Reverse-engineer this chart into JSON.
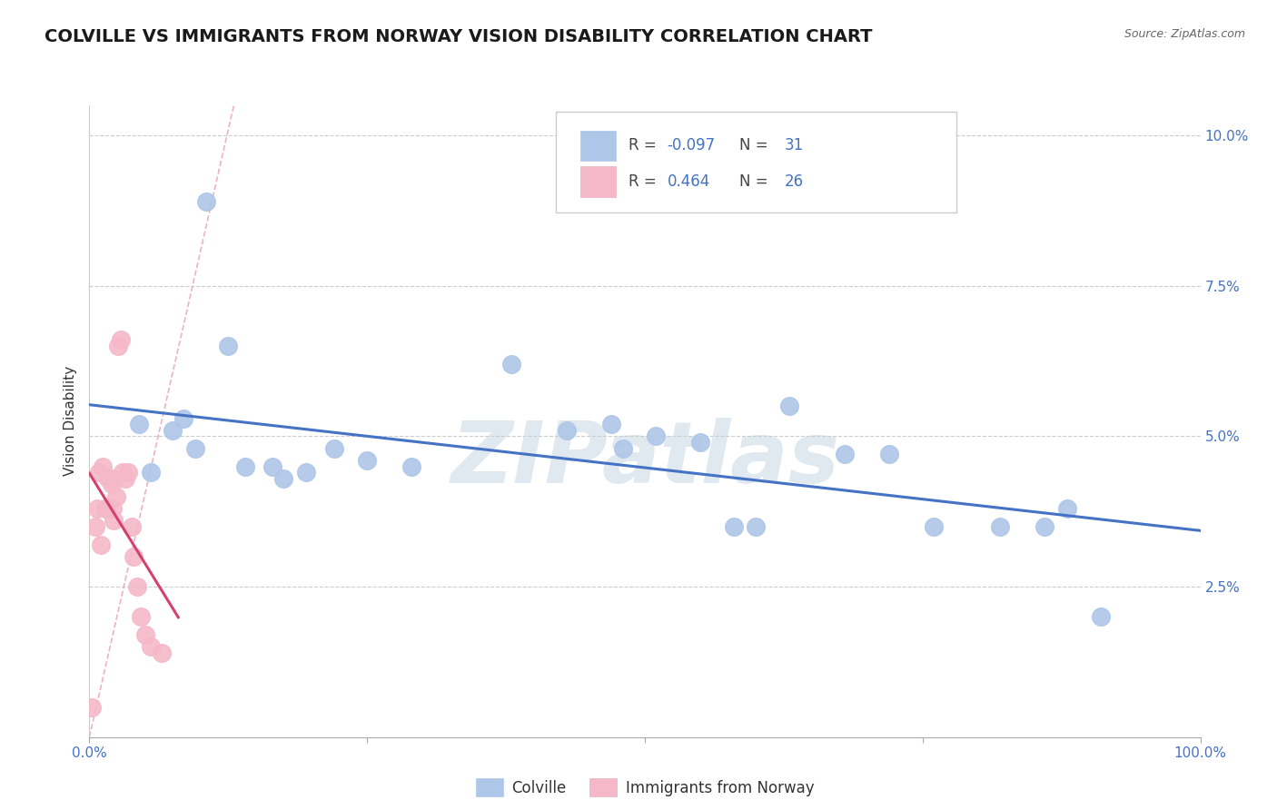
{
  "title": "COLVILLE VS IMMIGRANTS FROM NORWAY VISION DISABILITY CORRELATION CHART",
  "source": "Source: ZipAtlas.com",
  "ylabel": "Vision Disability",
  "legend_label1": "Colville",
  "legend_label2": "Immigrants from Norway",
  "r1": "-0.097",
  "n1": "31",
  "r2": "0.464",
  "n2": "26",
  "colville_color": "#aec6e8",
  "norway_color": "#f5b8c8",
  "colville_line_color": "#4472C4",
  "norway_line_color": "#d44070",
  "ref_line_color": "#e8a0b4",
  "background_color": "#ffffff",
  "grid_color": "#cccccc",
  "xlim": [
    0.0,
    100.0
  ],
  "ylim": [
    0.0,
    10.5
  ],
  "yticks": [
    2.5,
    5.0,
    7.5,
    10.0
  ],
  "colville_x": [
    2.0,
    4.5,
    5.5,
    7.5,
    8.5,
    9.5,
    10.5,
    12.5,
    14.0,
    16.5,
    17.5,
    19.5,
    22.0,
    25.0,
    29.0,
    38.0,
    43.0,
    47.0,
    48.0,
    51.0,
    55.0,
    58.0,
    60.0,
    63.0,
    68.0,
    72.0,
    76.0,
    82.0,
    86.0,
    88.0,
    91.0
  ],
  "colville_y": [
    4.3,
    5.2,
    4.4,
    5.1,
    5.3,
    4.8,
    8.9,
    6.5,
    4.5,
    4.5,
    4.3,
    4.4,
    4.8,
    4.6,
    4.5,
    6.2,
    5.1,
    5.2,
    4.8,
    5.0,
    4.9,
    3.5,
    3.5,
    5.5,
    4.7,
    4.7,
    3.5,
    3.5,
    3.5,
    3.8,
    2.0
  ],
  "norway_x": [
    0.2,
    0.5,
    0.7,
    0.9,
    1.0,
    1.2,
    1.4,
    1.5,
    1.7,
    1.9,
    2.0,
    2.1,
    2.2,
    2.4,
    2.6,
    2.8,
    3.0,
    3.2,
    3.5,
    3.8,
    4.0,
    4.3,
    4.6,
    5.0,
    5.5,
    6.5
  ],
  "norway_y": [
    0.5,
    3.5,
    3.8,
    4.4,
    3.2,
    4.5,
    3.8,
    3.8,
    4.3,
    4.3,
    4.2,
    3.8,
    3.6,
    4.0,
    6.5,
    6.6,
    4.4,
    4.3,
    4.4,
    3.5,
    3.0,
    2.5,
    2.0,
    1.7,
    1.5,
    1.4
  ],
  "watermark_text": "ZIPatlas",
  "title_fontsize": 14,
  "label_fontsize": 11,
  "tick_fontsize": 11,
  "legend_fontsize": 12
}
